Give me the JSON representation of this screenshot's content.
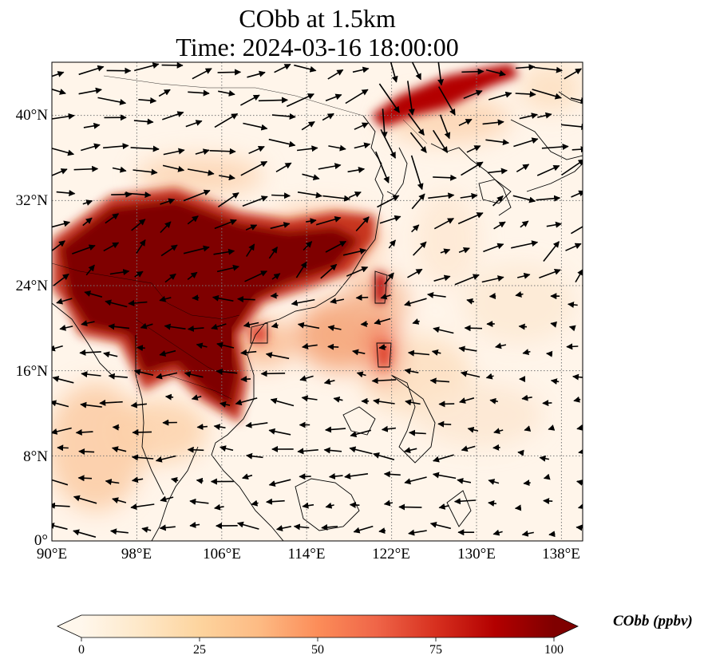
{
  "title": {
    "line1": "CObb at 1.5km",
    "line2": "Time: 2024-03-16 18:00:00"
  },
  "map": {
    "region": "East and Southeast Asia",
    "lon_range": [
      90,
      140
    ],
    "lat_range": [
      0,
      45
    ],
    "gridlines": "dotted grey",
    "coastlines": true,
    "country_borders": true,
    "wind_vectors": true,
    "field_colormap": "OrRd",
    "x_ticks": [
      {
        "value": 90,
        "label": "90°E"
      },
      {
        "value": 98,
        "label": "98°E"
      },
      {
        "value": 106,
        "label": "106°E"
      },
      {
        "value": 114,
        "label": "114°E"
      },
      {
        "value": 122,
        "label": "122°E"
      },
      {
        "value": 130,
        "label": "130°E"
      },
      {
        "value": 138,
        "label": "138°E"
      }
    ],
    "y_ticks": [
      {
        "value": 0,
        "label": "0°"
      },
      {
        "value": 8,
        "label": "8°N"
      },
      {
        "value": 16,
        "label": "16°N"
      },
      {
        "value": 24,
        "label": "24°N"
      },
      {
        "value": 32,
        "label": "32°N"
      },
      {
        "value": 40,
        "label": "40°N"
      }
    ]
  },
  "colorbar": {
    "label": "CObb (ppbv)",
    "min": 0,
    "max": 100,
    "extend": "both",
    "ticks": [
      "0",
      "25",
      "50",
      "75",
      "100"
    ],
    "colors": [
      "#fff7ec",
      "#fee8c8",
      "#fdd49e",
      "#fdbb84",
      "#fc8d59",
      "#ef6548",
      "#d7301f",
      "#b30000",
      "#7f0000"
    ]
  }
}
